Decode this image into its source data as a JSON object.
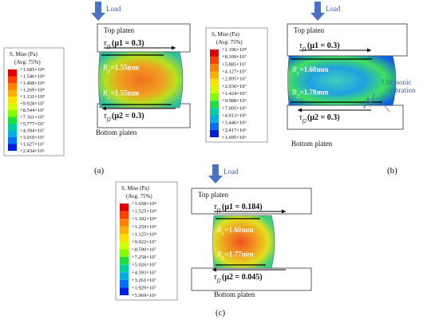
{
  "panels": [
    {
      "label": "(a)",
      "load": "Load",
      "top_platen": "Top  platen",
      "bottom_platen": "Bottom  platen",
      "legend": {
        "title": "S, Mise (Pa)",
        "subtitle": "(Avg: 75%)",
        "entries": [
          "+1.685×10⁸",
          "+1.546×10⁸",
          "+1.408×10⁸",
          "+1.269×10⁸",
          "+1.131×10⁸",
          "+9.928×10⁷",
          "+8.544×10⁷",
          "+7.161×10⁷",
          "+5.777×10⁷",
          "+4.394×10⁷",
          "+3.010×10⁷",
          "+1.627×10⁷",
          "+2.434×10⁶"
        ]
      },
      "tau1": {
        "symbol": "τ",
        "sub": "f1",
        "expr": "(μ1 = 0.3)"
      },
      "tau2": {
        "symbol": "τ",
        "sub": "f2",
        "expr": "(μ2 = 0.3)"
      },
      "r1": {
        "symbol": "R",
        "sub": "1",
        "expr": "=1.55mm"
      },
      "r2": {
        "symbol": "R",
        "sub": "2",
        "expr": "=1.55mm"
      }
    },
    {
      "label": "(b)",
      "load": "Load",
      "top_platen": "Top  platen",
      "bottom_platen": "Bottom  platen",
      "vibration": "Ultrasonic vibration",
      "legend": {
        "title": "S, Mise (Pa)",
        "subtitle": "(Avg: 75%)",
        "entries": [
          "+1.196×10⁸",
          "+8.399×10⁷",
          "+5.885×10⁷",
          "+4.127×10⁷",
          "+2.895×10⁷",
          "+2.030×10⁷",
          "+1.424×10⁷",
          "+9.988×10⁶",
          "+7.005×10⁶",
          "+4.913×10⁶",
          "+3.446×10⁶",
          "+2.417×10⁶",
          "+1.695×10⁶"
        ]
      },
      "tau1": {
        "symbol": "τ",
        "sub": "f1",
        "expr": "(μ1 = 0.3)"
      },
      "tau2": {
        "symbol": "τ",
        "sub": "f2",
        "expr": "(μ2 = 0.3)"
      },
      "r1": {
        "symbol": "R",
        "sub": "1",
        "expr": "=1.60mm"
      },
      "r2": {
        "symbol": "R",
        "sub": "2",
        "expr": "=1.78mm"
      }
    },
    {
      "label": "(c)",
      "load": "Load",
      "top_platen": "Top  platen",
      "bottom_platen": "Bottom  platen",
      "legend": {
        "title": "S, Mise (Pa)",
        "subtitle": "(Avg: 75%)",
        "entries": [
          "+1.658×10⁸",
          "+1.525×10⁸",
          "+1.392×10⁸",
          "+1.259×10⁸",
          "+1.125×10⁸",
          "+9.922×10⁷",
          "+8.590×10⁷",
          "+7.258×10⁷",
          "+5.926×10⁷",
          "+4.593×10⁷",
          "+3.261×10⁷",
          "+1.929×10⁷",
          "+5.969×10⁶"
        ]
      },
      "tau1": {
        "symbol": "τ",
        "sub": "f1",
        "expr": "(μ1 = 0.184)"
      },
      "tau2": {
        "symbol": "τ",
        "sub": "f2",
        "expr": "(μ2 = 0.045)"
      },
      "r1": {
        "symbol": "R",
        "sub": "1",
        "expr": "=1.60mm"
      },
      "r2": {
        "symbol": "R",
        "sub": "2",
        "expr": "=1.77mm"
      }
    }
  ]
}
